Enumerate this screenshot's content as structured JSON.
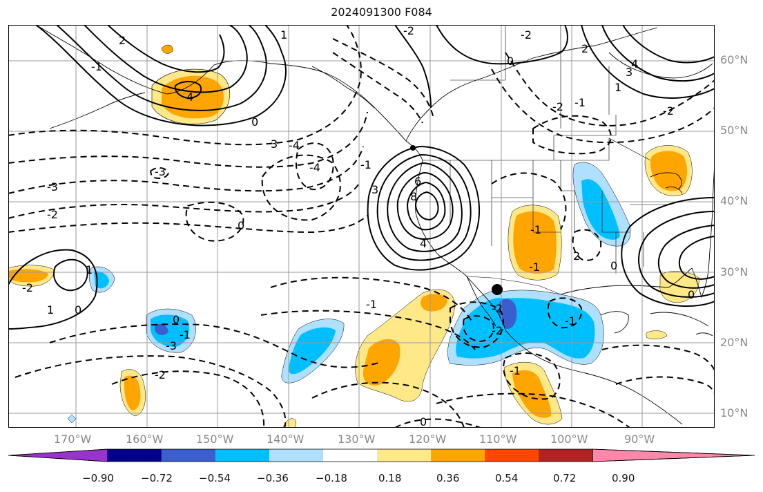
{
  "title": "2024091300 F084",
  "lat_labels": [
    "60°N",
    "50°N",
    "40°N",
    "30°N",
    "20°N",
    "10°N"
  ],
  "lon_labels": [
    "170°W",
    "160°W",
    "150°W",
    "140°W",
    "130°W",
    "120°W",
    "110°W",
    "100°W",
    "90°W"
  ],
  "contour_labels": [
    "2",
    "0",
    "-2",
    "-3",
    "-4",
    "4",
    "-1",
    "1",
    "-2",
    "3",
    "-3",
    "-2",
    "-1",
    "0",
    "6",
    "8",
    "4",
    "3",
    "-4",
    "-3",
    "-2",
    "-1",
    "0",
    "1",
    "-1",
    "-2",
    "-2",
    "2",
    "0",
    "1",
    "2",
    "3",
    "4",
    "-2",
    "-1",
    "-1",
    "0",
    "-2",
    "-1",
    "-1",
    "-2",
    "-1",
    "0",
    "1",
    "0",
    "0"
  ],
  "colorbar": {
    "ticks": [
      "−0.90",
      "−0.72",
      "−0.54",
      "−0.36",
      "−0.18",
      "0.18",
      "0.36",
      "0.54",
      "0.72",
      "0.90"
    ],
    "colors": [
      "#9a32cd",
      "#00008b",
      "#3a5fcd",
      "#00bfff",
      "#afe0ff",
      "#ffffff",
      "#ffe888",
      "#ffa500",
      "#ff4500",
      "#b22222",
      "#ff88aa"
    ]
  },
  "colors": {
    "grid": "#999999",
    "axis_label": "#888888",
    "contour": "#000000",
    "marker": "#000000"
  }
}
